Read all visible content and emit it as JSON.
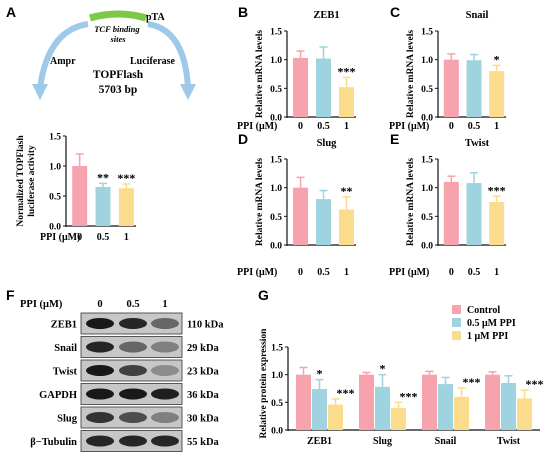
{
  "colors": {
    "pink": "#f6a3ae",
    "blue": "#9fd3df",
    "yellow": "#fbdc8c",
    "plasmid": "#9ec9e8",
    "tcf": "#7cc946"
  },
  "panel_letters": [
    "A",
    "B",
    "C",
    "D",
    "E",
    "F",
    "G"
  ],
  "plasmid": {
    "top_label": "pTA",
    "tcf_label": "TCF binding sites",
    "ampr": "Ampr",
    "luciferase": "Luciferase",
    "name": "TOPFlash",
    "size": "5703 bp"
  },
  "ppi_label": "PPI (μM)",
  "blot": {
    "header_label": "PPI (μM)",
    "conditions": [
      "0",
      "0.5",
      "1"
    ],
    "rows": [
      {
        "protein": "ZEB1",
        "kda": "110 kDa"
      },
      {
        "protein": "Snail",
        "kda": "29 kDa"
      },
      {
        "protein": "Twist",
        "kda": "23 kDa"
      },
      {
        "protein": "GAPDH",
        "kda": "36 kDa"
      },
      {
        "protein": "Slug",
        "kda": "30 kDa"
      },
      {
        "protein": "β−Tubulin",
        "kda": "55 kDa"
      }
    ]
  },
  "chart_data": [
    {
      "panel": "A",
      "type": "bar",
      "title": "",
      "ylabel": "Normalized TOPFlash luciferase activity",
      "xlabel": "PPI (μM)",
      "categories": [
        "0",
        "0.5",
        "1"
      ],
      "values": [
        1.0,
        0.65,
        0.63
      ],
      "errors": [
        0.2,
        0.06,
        0.07
      ],
      "significance": [
        "",
        "**",
        "***"
      ],
      "ylim": [
        0,
        1.5
      ],
      "yticks": [
        "0.0",
        "0.5",
        "1.0",
        "1.5"
      ]
    },
    {
      "panel": "B",
      "type": "bar",
      "title": "ZEB1",
      "ylabel": "Relative mRNA levels",
      "xlabel": "PPI (μM)",
      "categories": [
        "0",
        "0.5",
        "1"
      ],
      "values": [
        1.03,
        1.02,
        0.52
      ],
      "errors": [
        0.12,
        0.2,
        0.17
      ],
      "significance": [
        "",
        "",
        "***"
      ],
      "ylim": [
        0,
        1.5
      ],
      "yticks": [
        "0.0",
        "0.5",
        "1.0",
        "1.5"
      ]
    },
    {
      "panel": "C",
      "type": "bar",
      "title": "Snail",
      "ylabel": "Relative mRNA levels",
      "xlabel": "PPI (μM)",
      "categories": [
        "0",
        "0.5",
        "1"
      ],
      "values": [
        1.0,
        0.99,
        0.8
      ],
      "errors": [
        0.1,
        0.1,
        0.1
      ],
      "significance": [
        "",
        "",
        "*"
      ],
      "ylim": [
        0,
        1.5
      ],
      "yticks": [
        "0.0",
        "0.5",
        "1.0",
        "1.5"
      ]
    },
    {
      "panel": "D",
      "type": "bar",
      "title": "Slug",
      "ylabel": "Relative mRNA levels",
      "xlabel": "PPI (μM)",
      "categories": [
        "0",
        "0.5",
        "1"
      ],
      "values": [
        1.0,
        0.8,
        0.62
      ],
      "errors": [
        0.18,
        0.15,
        0.22
      ],
      "significance": [
        "",
        "",
        "**"
      ],
      "ylim": [
        0,
        1.5
      ],
      "yticks": [
        "0.0",
        "0.5",
        "1.0",
        "1.5"
      ]
    },
    {
      "panel": "E",
      "type": "bar",
      "title": "Twist",
      "ylabel": "Relative mRNA levels",
      "xlabel": "PPI (μM)",
      "categories": [
        "0",
        "0.5",
        "1"
      ],
      "values": [
        1.1,
        1.08,
        0.75
      ],
      "errors": [
        0.1,
        0.18,
        0.1
      ],
      "significance": [
        "",
        "",
        "***"
      ],
      "ylim": [
        0,
        1.5
      ],
      "yticks": [
        "0.0",
        "0.5",
        "1.0",
        "1.5"
      ]
    },
    {
      "panel": "G",
      "type": "bar",
      "title": "",
      "ylabel": "Relative protein expression",
      "categories": [
        "ZEB1",
        "Slug",
        "Snail",
        "Twist"
      ],
      "ylim": [
        0,
        1.5
      ],
      "yticks": [
        "0.0",
        "0.5",
        "1.0",
        "1.5"
      ],
      "legend": "top-right",
      "series": [
        {
          "name": "Control",
          "values": [
            1.0,
            1.0,
            1.0,
            1.0
          ],
          "errors": [
            0.13,
            0.04,
            0.06,
            0.05
          ],
          "significance": [
            "",
            "",
            "",
            ""
          ]
        },
        {
          "name": "0.5 μM PPI",
          "values": [
            0.74,
            0.78,
            0.83,
            0.85
          ],
          "errors": [
            0.17,
            0.22,
            0.12,
            0.13
          ],
          "significance": [
            "*",
            "*",
            "",
            ""
          ]
        },
        {
          "name": "1 μM PPI",
          "values": [
            0.46,
            0.4,
            0.6,
            0.57
          ],
          "errors": [
            0.1,
            0.1,
            0.16,
            0.15
          ],
          "significance": [
            "***",
            "***",
            "***",
            "***"
          ]
        }
      ]
    }
  ]
}
